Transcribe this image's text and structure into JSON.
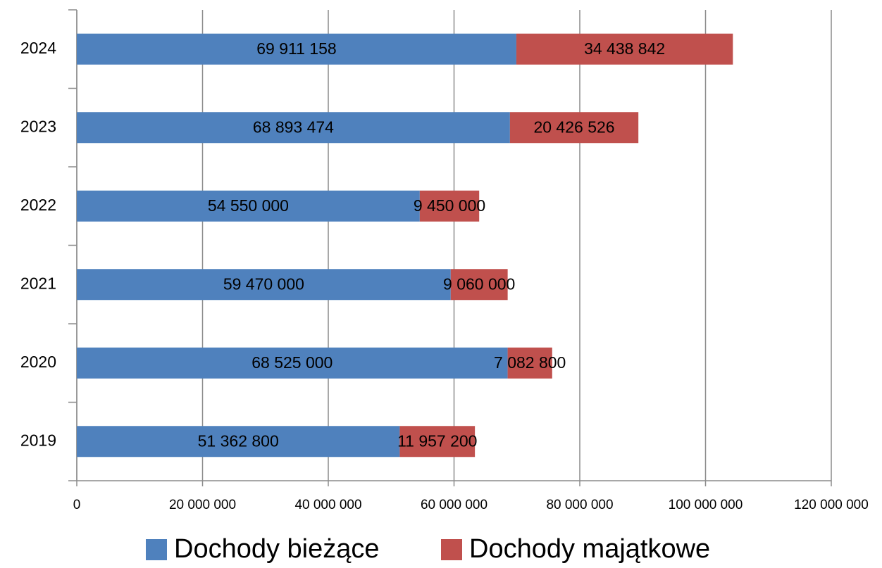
{
  "chart_data": {
    "type": "bar",
    "orientation": "horizontal",
    "stacked": true,
    "categories": [
      "2019",
      "2020",
      "2021",
      "2022",
      "2023",
      "2024"
    ],
    "series": [
      {
        "name": "Dochody bieżące",
        "color": "#4f81bd",
        "values": [
          51362800,
          68525000,
          59470000,
          54550000,
          68893474,
          69911158
        ],
        "value_labels": [
          "51 362 800",
          "68 525 000",
          "59 470 000",
          "54 550 000",
          "68 893 474",
          "69 911 158"
        ]
      },
      {
        "name": "Dochody majątkowe",
        "color": "#c0504d",
        "values": [
          11957200,
          7082800,
          9060000,
          9450000,
          20426526,
          34438842
        ],
        "value_labels": [
          "11 957 200",
          "7 082 800",
          "9 060 000",
          "9 450 000",
          "20 426 526",
          "34 438 842"
        ]
      }
    ],
    "xlim": [
      0,
      120000000
    ],
    "xticks": [
      0,
      {
        "value": 20000000,
        "label": "20 000 000"
      },
      {
        "value": 40000000,
        "label": "40 000 000"
      },
      {
        "value": 60000000,
        "label": "60 000 000"
      },
      {
        "value": 80000000,
        "label": "80 000 000"
      },
      {
        "value": 100000000,
        "label": "100 000 000"
      },
      {
        "value": 120000000,
        "label": "120 000 000"
      }
    ],
    "grid": true,
    "legend": "bottom"
  }
}
